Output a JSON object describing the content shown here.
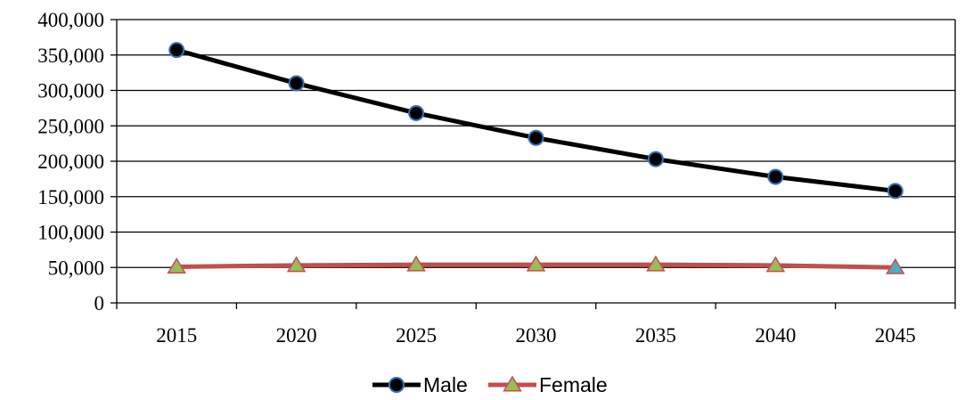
{
  "chart_data": {
    "type": "line",
    "categories": [
      "2015",
      "2020",
      "2025",
      "2030",
      "2035",
      "2040",
      "2045"
    ],
    "series": [
      {
        "name": "Male",
        "values": [
          357000,
          310000,
          268000,
          233000,
          203000,
          178000,
          158000
        ],
        "color": "#000000",
        "marker": "circle",
        "marker_color": "#000000",
        "marker_edge_color": "#3b6fb6"
      },
      {
        "name": "Female",
        "values": [
          51000,
          53000,
          54000,
          54000,
          54000,
          53000,
          50000
        ],
        "color": "#c0504d",
        "marker": "triangle",
        "marker_color": "#9bbb59",
        "marker_edge_color": "#c0504d",
        "last_marker_color": "#4bacc6"
      }
    ],
    "yticks": [
      "400,000",
      "350,000",
      "300,000",
      "250,000",
      "200,000",
      "150,000",
      "100,000",
      "50,000",
      "0"
    ],
    "ylim": [
      0,
      400000
    ],
    "grid": true,
    "legend_position": "bottom",
    "title": "",
    "xlabel": "",
    "ylabel": ""
  }
}
